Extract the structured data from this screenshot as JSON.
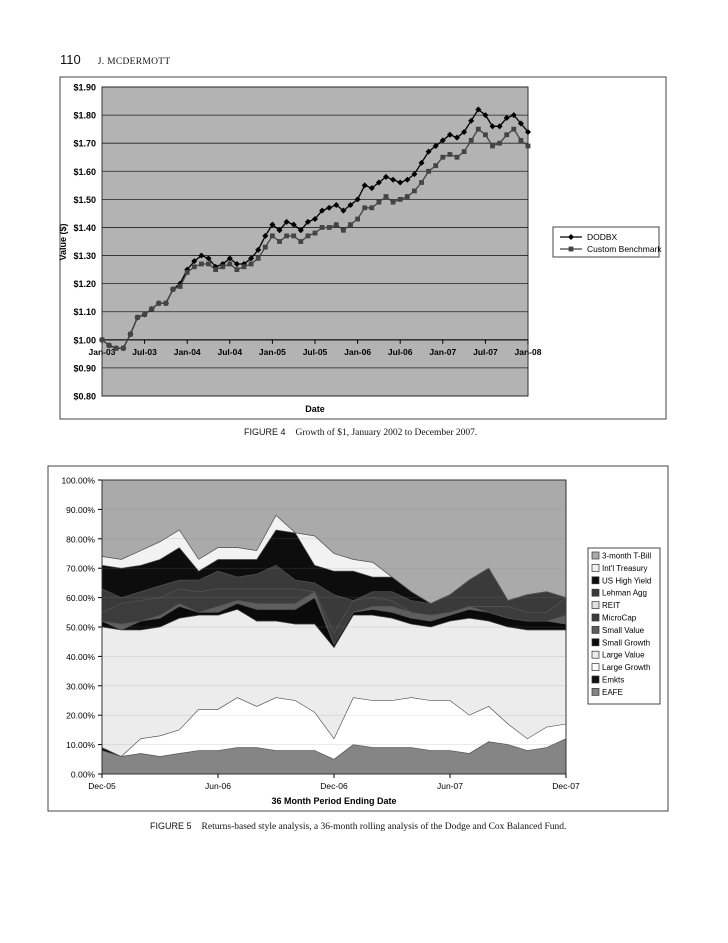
{
  "header": {
    "page_number": "110",
    "author": "J. MCDERMOTT"
  },
  "figures": [
    {
      "label": "FIGURE 4",
      "caption": "Growth of $1, January 2002 to December 2007."
    },
    {
      "label": "FIGURE 5",
      "caption": "Returns-based style analysis, a 36-month rolling analysis of the Dodge and Cox Balanced Fund."
    }
  ],
  "chart_data": [
    {
      "type": "line",
      "ylabel": "Value ($)",
      "xlabel": "Date",
      "ylim": [
        0.8,
        1.9
      ],
      "y_ticks": [
        "$0.80",
        "$0.90",
        "$1.00",
        "$1.10",
        "$1.20",
        "$1.30",
        "$1.40",
        "$1.50",
        "$1.60",
        "$1.70",
        "$1.80",
        "$1.90"
      ],
      "x_ticks": [
        "Jan-03",
        "Jul-03",
        "Jan-04",
        "Jul-04",
        "Jan-05",
        "Jul-05",
        "Jan-06",
        "Jul-06",
        "Jan-07",
        "Jul-07",
        "Jan-08"
      ],
      "legend_position": "right",
      "grid": true,
      "series": [
        {
          "name": "DODBX",
          "values": [
            1.0,
            0.98,
            0.97,
            0.97,
            1.02,
            1.08,
            1.09,
            1.11,
            1.13,
            1.13,
            1.18,
            1.2,
            1.25,
            1.28,
            1.3,
            1.29,
            1.26,
            1.27,
            1.29,
            1.27,
            1.27,
            1.29,
            1.32,
            1.37,
            1.41,
            1.39,
            1.42,
            1.41,
            1.39,
            1.42,
            1.43,
            1.46,
            1.47,
            1.48,
            1.46,
            1.48,
            1.5,
            1.55,
            1.54,
            1.56,
            1.58,
            1.57,
            1.56,
            1.57,
            1.59,
            1.63,
            1.67,
            1.69,
            1.71,
            1.73,
            1.72,
            1.74,
            1.78,
            1.82,
            1.8,
            1.76,
            1.76,
            1.79,
            1.8,
            1.77,
            1.74
          ]
        },
        {
          "name": "Custom Benchmark",
          "values": [
            1.0,
            0.98,
            0.97,
            0.97,
            1.02,
            1.08,
            1.09,
            1.11,
            1.13,
            1.13,
            1.18,
            1.19,
            1.24,
            1.26,
            1.27,
            1.27,
            1.25,
            1.26,
            1.27,
            1.25,
            1.26,
            1.27,
            1.29,
            1.33,
            1.37,
            1.35,
            1.37,
            1.37,
            1.35,
            1.37,
            1.38,
            1.4,
            1.4,
            1.41,
            1.39,
            1.41,
            1.43,
            1.47,
            1.47,
            1.49,
            1.51,
            1.49,
            1.5,
            1.51,
            1.53,
            1.56,
            1.6,
            1.62,
            1.65,
            1.66,
            1.65,
            1.67,
            1.71,
            1.75,
            1.73,
            1.69,
            1.7,
            1.73,
            1.75,
            1.71,
            1.69
          ]
        }
      ]
    },
    {
      "type": "area",
      "xlabel": "36 Month Period Ending Date",
      "ylim": [
        0,
        100
      ],
      "y_ticks": [
        "0.00%",
        "10.00%",
        "20.00%",
        "30.00%",
        "40.00%",
        "50.00%",
        "60.00%",
        "70.00%",
        "80.00%",
        "90.00%",
        "100.00%"
      ],
      "x_ticks": [
        "Dec-05",
        "Jun-06",
        "Dec-06",
        "Jun-07",
        "Dec-07"
      ],
      "legend_position": "right",
      "grid": true,
      "x": [
        "Dec-05",
        "Jan-06",
        "Feb-06",
        "Mar-06",
        "Apr-06",
        "May-06",
        "Jun-06",
        "Jul-06",
        "Aug-06",
        "Sep-06",
        "Oct-06",
        "Nov-06",
        "Dec-06",
        "Jan-07",
        "Feb-07",
        "Mar-07",
        "Apr-07",
        "May-07",
        "Jun-07",
        "Jul-07",
        "Aug-07",
        "Sep-07",
        "Oct-07",
        "Nov-07",
        "Dec-07"
      ],
      "series": [
        {
          "name": "EAFE",
          "values": [
            8,
            6,
            7,
            6,
            7,
            8,
            8,
            9,
            9,
            8,
            8,
            8,
            5,
            10,
            9,
            9,
            9,
            8,
            8,
            7,
            11,
            10,
            8,
            9,
            12
          ]
        },
        {
          "name": "Emkts",
          "values": [
            1,
            0,
            0,
            0,
            0,
            0,
            0,
            0,
            0,
            0,
            0,
            0,
            0,
            0,
            0,
            0,
            0,
            0,
            0,
            0,
            0,
            0,
            0,
            0,
            0
          ]
        },
        {
          "name": "Large Growth",
          "values": [
            0,
            0,
            5,
            7,
            8,
            14,
            14,
            17,
            14,
            18,
            17,
            13,
            7,
            16,
            16,
            16,
            17,
            17,
            17,
            13,
            12,
            7,
            4,
            7,
            5
          ]
        },
        {
          "name": "Large Value",
          "values": [
            41,
            43,
            37,
            37,
            38,
            32,
            32,
            30,
            29,
            26,
            26,
            30,
            31,
            28,
            29,
            28,
            25,
            25,
            27,
            33,
            29,
            33,
            37,
            33,
            32
          ]
        },
        {
          "name": "Small Growth",
          "values": [
            2,
            0,
            3,
            3,
            4,
            1,
            1,
            2,
            4,
            4,
            5,
            9,
            1,
            1,
            2,
            2,
            2,
            2,
            2,
            3,
            3,
            3,
            3,
            3,
            2
          ]
        },
        {
          "name": "Small Value",
          "values": [
            0,
            2,
            0,
            1,
            1,
            0,
            2,
            1,
            2,
            2,
            2,
            2,
            0,
            0,
            1,
            2,
            2,
            2,
            1,
            1,
            0,
            0,
            0,
            0,
            3
          ]
        },
        {
          "name": "MicroCap",
          "values": [
            3,
            7,
            7,
            6,
            5,
            7,
            6,
            4,
            5,
            5,
            5,
            0,
            4,
            4,
            3,
            2,
            0,
            0,
            0,
            0,
            2,
            4,
            3,
            3,
            6
          ]
        },
        {
          "name": "REIT",
          "values": [
            0,
            0,
            0,
            0,
            0,
            0,
            0,
            0,
            0,
            0,
            0,
            0,
            0,
            0,
            0,
            0,
            0,
            0,
            0,
            0,
            0,
            0,
            0,
            0,
            0
          ]
        },
        {
          "name": "Lehman Agg",
          "values": [
            8,
            2,
            3,
            4,
            3,
            4,
            6,
            4,
            5,
            8,
            3,
            3,
            13,
            0,
            2,
            3,
            4,
            4,
            6,
            9,
            13,
            2,
            6,
            7,
            0
          ]
        },
        {
          "name": "US High Yield",
          "values": [
            8,
            10,
            9,
            9,
            11,
            3,
            4,
            6,
            5,
            12,
            16,
            6,
            8,
            10,
            5,
            5,
            3,
            0,
            0,
            0,
            0,
            0,
            0,
            0,
            0
          ]
        },
        {
          "name": "Int'l Treasury",
          "values": [
            3,
            3,
            5,
            6,
            6,
            4,
            4,
            4,
            3,
            5,
            0,
            10,
            6,
            4,
            5,
            0,
            0,
            0,
            0,
            0,
            0,
            0,
            0,
            0,
            0
          ]
        },
        {
          "name": "3-month T-Bill",
          "values": [
            0,
            0,
            0,
            0,
            0,
            0,
            0,
            0,
            0,
            0,
            0,
            0,
            0,
            0,
            0,
            0,
            0,
            0,
            0,
            0,
            0,
            0,
            0,
            0,
            0
          ]
        }
      ]
    }
  ]
}
